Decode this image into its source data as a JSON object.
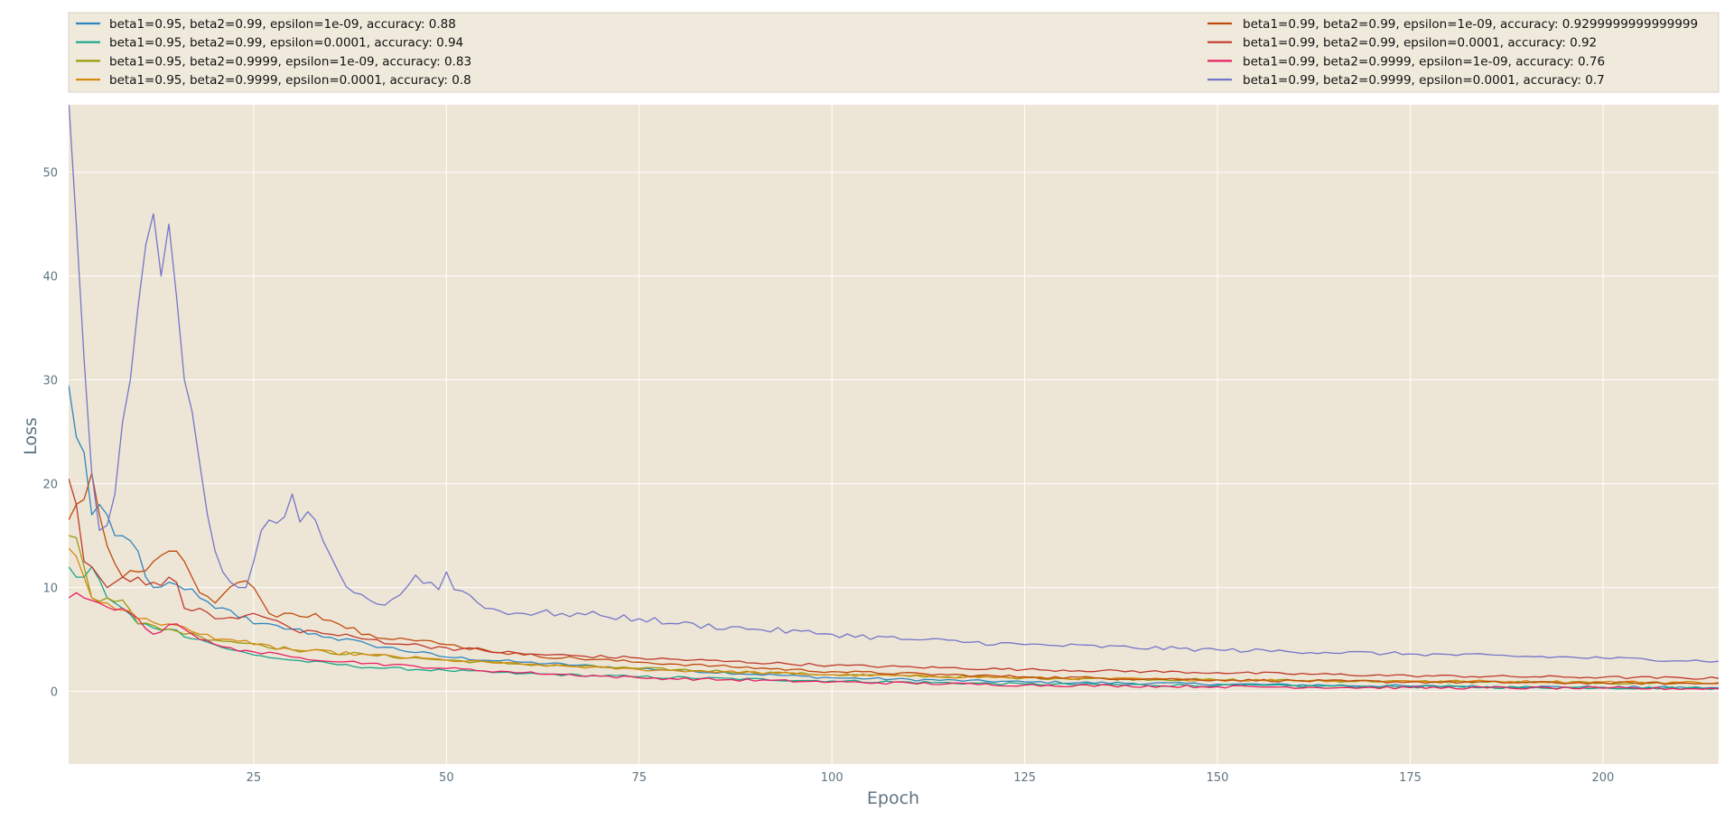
{
  "chart_data": {
    "type": "line",
    "title": "",
    "xlabel": "Epoch",
    "ylabel": "Loss",
    "xlim": [
      1,
      215
    ],
    "ylim": [
      -7,
      56.5
    ],
    "xticks": [
      25,
      50,
      75,
      100,
      125,
      150,
      175,
      200
    ],
    "yticks": [
      0,
      10,
      20,
      30,
      40,
      50
    ],
    "grid": true,
    "legend_position": "top",
    "colors": {
      "axes_bg": "#ede6d6",
      "legend_bg": "#f0eadc",
      "grid": "#ffffff",
      "tick_text": "#5f7480"
    },
    "series": [
      {
        "name": "beta1=0.95, beta2=0.99, epsilon=1e-09, accuracy: 0.88",
        "color": "#2e86c1",
        "legend_col": 0,
        "anchors": [
          [
            1,
            29.5
          ],
          [
            2,
            24.5
          ],
          [
            3,
            23
          ],
          [
            4,
            17
          ],
          [
            5,
            18
          ],
          [
            6,
            17
          ],
          [
            7,
            15
          ],
          [
            9,
            14.5
          ],
          [
            10,
            13.5
          ],
          [
            11,
            11
          ],
          [
            12,
            10
          ],
          [
            14,
            10.5
          ],
          [
            16,
            9.8
          ],
          [
            18,
            9
          ],
          [
            20,
            8
          ],
          [
            22,
            7.8
          ],
          [
            25,
            6.5
          ],
          [
            30,
            6
          ],
          [
            35,
            5.2
          ],
          [
            40,
            4.5
          ],
          [
            50,
            3.3
          ],
          [
            60,
            2.8
          ],
          [
            75,
            2.2
          ],
          [
            100,
            1.3
          ],
          [
            125,
            0.9
          ],
          [
            150,
            0.7
          ],
          [
            175,
            0.5
          ],
          [
            200,
            0.4
          ],
          [
            215,
            0.35
          ]
        ]
      },
      {
        "name": "beta1=0.95, beta2=0.99, epsilon=0.0001, accuracy: 0.94",
        "color": "#17a589",
        "legend_col": 0,
        "anchors": [
          [
            1,
            12
          ],
          [
            2,
            11
          ],
          [
            3,
            11
          ],
          [
            4,
            12
          ],
          [
            6,
            9
          ],
          [
            8,
            8
          ],
          [
            10,
            6.5
          ],
          [
            14,
            6
          ],
          [
            18,
            5
          ],
          [
            22,
            4
          ],
          [
            25,
            3.5
          ],
          [
            30,
            3
          ],
          [
            40,
            2.3
          ],
          [
            50,
            2
          ],
          [
            60,
            1.7
          ],
          [
            75,
            1.4
          ],
          [
            100,
            1
          ],
          [
            125,
            0.7
          ],
          [
            150,
            0.55
          ],
          [
            175,
            0.45
          ],
          [
            200,
            0.35
          ],
          [
            215,
            0.3
          ]
        ]
      },
      {
        "name": "beta1=0.95, beta2=0.9999, epsilon=1e-09, accuracy: 0.83",
        "color": "#9a9a10",
        "legend_col": 0,
        "anchors": [
          [
            1,
            15
          ],
          [
            2,
            14.8
          ],
          [
            3,
            12
          ],
          [
            4,
            9
          ],
          [
            6,
            9
          ],
          [
            8,
            8.8
          ],
          [
            10,
            6.5
          ],
          [
            14,
            6
          ],
          [
            18,
            5.3
          ],
          [
            22,
            4.8
          ],
          [
            25,
            4.6
          ],
          [
            30,
            4
          ],
          [
            40,
            3.5
          ],
          [
            50,
            3
          ],
          [
            60,
            2.6
          ],
          [
            75,
            2.2
          ],
          [
            100,
            1.6
          ],
          [
            125,
            1.3
          ],
          [
            150,
            1.1
          ],
          [
            175,
            0.95
          ],
          [
            200,
            0.8
          ],
          [
            215,
            0.75
          ]
        ]
      },
      {
        "name": "beta1=0.95, beta2=0.9999, epsilon=0.0001, accuracy: 0.8",
        "color": "#d68910",
        "legend_col": 0,
        "anchors": [
          [
            1,
            13.8
          ],
          [
            2,
            13
          ],
          [
            3,
            11
          ],
          [
            4,
            9
          ],
          [
            6,
            8.5
          ],
          [
            8,
            7.8
          ],
          [
            10,
            7
          ],
          [
            14,
            6.5
          ],
          [
            18,
            5.5
          ],
          [
            22,
            5
          ],
          [
            25,
            4.5
          ],
          [
            30,
            4
          ],
          [
            40,
            3.5
          ],
          [
            50,
            3
          ],
          [
            60,
            2.6
          ],
          [
            75,
            2.1
          ],
          [
            100,
            1.6
          ],
          [
            125,
            1.3
          ],
          [
            150,
            1.1
          ],
          [
            175,
            1
          ],
          [
            200,
            0.9
          ],
          [
            215,
            0.85
          ]
        ]
      },
      {
        "name": "beta1=0.99, beta2=0.99, epsilon=1e-09, accuracy: 0.9299999999999999",
        "color": "#c0490d",
        "legend_col": 1,
        "anchors": [
          [
            1,
            16.5
          ],
          [
            2,
            18
          ],
          [
            3,
            18.5
          ],
          [
            4,
            21
          ],
          [
            5,
            17
          ],
          [
            6,
            14
          ],
          [
            8,
            11
          ],
          [
            10,
            11.5
          ],
          [
            12,
            12.5
          ],
          [
            14,
            13.5
          ],
          [
            15,
            13.5
          ],
          [
            17,
            11
          ],
          [
            18,
            9.5
          ],
          [
            20,
            8.5
          ],
          [
            23,
            10.5
          ],
          [
            25,
            10
          ],
          [
            27,
            7.5
          ],
          [
            30,
            7.5
          ],
          [
            33,
            7.5
          ],
          [
            36,
            6.5
          ],
          [
            40,
            5.5
          ],
          [
            45,
            5
          ],
          [
            50,
            4.5
          ],
          [
            55,
            4
          ],
          [
            60,
            3.5
          ],
          [
            75,
            2.8
          ],
          [
            100,
            1.9
          ],
          [
            125,
            1.4
          ],
          [
            150,
            1.1
          ],
          [
            175,
            0.9
          ],
          [
            200,
            0.8
          ],
          [
            215,
            0.75
          ]
        ]
      },
      {
        "name": "beta1=0.99, beta2=0.99, epsilon=0.0001, accuracy: 0.92",
        "color": "#c0392b",
        "legend_col": 1,
        "anchors": [
          [
            1,
            20.5
          ],
          [
            2,
            18
          ],
          [
            3,
            12.5
          ],
          [
            4,
            12
          ],
          [
            5,
            11
          ],
          [
            6,
            10
          ],
          [
            7,
            10.5
          ],
          [
            8,
            11
          ],
          [
            10,
            11
          ],
          [
            12,
            10.5
          ],
          [
            15,
            10.5
          ],
          [
            16,
            8
          ],
          [
            18,
            8
          ],
          [
            20,
            7
          ],
          [
            23,
            7
          ],
          [
            25,
            7.5
          ],
          [
            27,
            7
          ],
          [
            30,
            6
          ],
          [
            35,
            5.5
          ],
          [
            40,
            5
          ],
          [
            45,
            4.5
          ],
          [
            50,
            4.2
          ],
          [
            60,
            3.6
          ],
          [
            75,
            3.2
          ],
          [
            100,
            2.5
          ],
          [
            125,
            2.1
          ],
          [
            150,
            1.8
          ],
          [
            175,
            1.5
          ],
          [
            200,
            1.35
          ],
          [
            215,
            1.25
          ]
        ]
      },
      {
        "name": "beta1=0.99, beta2=0.9999, epsilon=1e-09, accuracy: 0.76",
        "color": "#e91e63",
        "legend_col": 1,
        "anchors": [
          [
            1,
            9
          ],
          [
            2,
            9.5
          ],
          [
            3,
            9
          ],
          [
            5,
            8.5
          ],
          [
            8,
            8
          ],
          [
            10,
            7
          ],
          [
            12,
            5.5
          ],
          [
            15,
            6.5
          ],
          [
            16,
            6
          ],
          [
            18,
            5
          ],
          [
            20,
            4.5
          ],
          [
            22,
            4.2
          ],
          [
            25,
            3.8
          ],
          [
            30,
            3.3
          ],
          [
            40,
            2.7
          ],
          [
            50,
            2.2
          ],
          [
            60,
            1.8
          ],
          [
            75,
            1.3
          ],
          [
            100,
            0.9
          ],
          [
            125,
            0.6
          ],
          [
            150,
            0.45
          ],
          [
            175,
            0.35
          ],
          [
            200,
            0.3
          ],
          [
            215,
            0.25
          ]
        ]
      },
      {
        "name": "beta1=0.99, beta2=0.9999, epsilon=0.0001, accuracy: 0.7",
        "color": "#7575c9",
        "legend_col": 1,
        "anchors": [
          [
            1,
            57
          ],
          [
            2,
            45
          ],
          [
            3,
            32
          ],
          [
            4,
            21
          ],
          [
            5,
            15.5
          ],
          [
            6,
            16
          ],
          [
            7,
            19
          ],
          [
            8,
            26
          ],
          [
            9,
            30
          ],
          [
            10,
            37
          ],
          [
            11,
            43
          ],
          [
            12,
            46
          ],
          [
            13,
            40
          ],
          [
            14,
            45
          ],
          [
            15,
            38
          ],
          [
            16,
            30
          ],
          [
            17,
            27
          ],
          [
            18,
            22
          ],
          [
            19,
            17
          ],
          [
            20,
            13.5
          ],
          [
            21,
            11.5
          ],
          [
            22,
            10.5
          ],
          [
            23,
            10
          ],
          [
            24,
            10
          ],
          [
            25,
            12.5
          ],
          [
            26,
            15.5
          ],
          [
            27,
            16.5
          ],
          [
            28,
            16.2
          ],
          [
            29,
            16.8
          ],
          [
            30,
            19
          ],
          [
            31,
            16.3
          ],
          [
            32,
            17.3
          ],
          [
            33,
            16.5
          ],
          [
            34,
            14.5
          ],
          [
            35,
            13
          ],
          [
            36,
            11.5
          ],
          [
            38,
            9.5
          ],
          [
            40,
            8.8
          ],
          [
            42,
            8.3
          ],
          [
            44,
            9.3
          ],
          [
            46,
            11.2
          ],
          [
            48,
            10.5
          ],
          [
            49,
            9.8
          ],
          [
            50,
            11.5
          ],
          [
            51,
            9.8
          ],
          [
            53,
            9.3
          ],
          [
            55,
            8
          ],
          [
            60,
            7.5
          ],
          [
            65,
            7.5
          ],
          [
            70,
            7.3
          ],
          [
            75,
            7
          ],
          [
            80,
            6.5
          ],
          [
            90,
            6
          ],
          [
            100,
            5.5
          ],
          [
            110,
            5
          ],
          [
            125,
            4.5
          ],
          [
            150,
            4
          ],
          [
            175,
            3.6
          ],
          [
            200,
            3.2
          ],
          [
            215,
            2.9
          ]
        ]
      }
    ]
  }
}
